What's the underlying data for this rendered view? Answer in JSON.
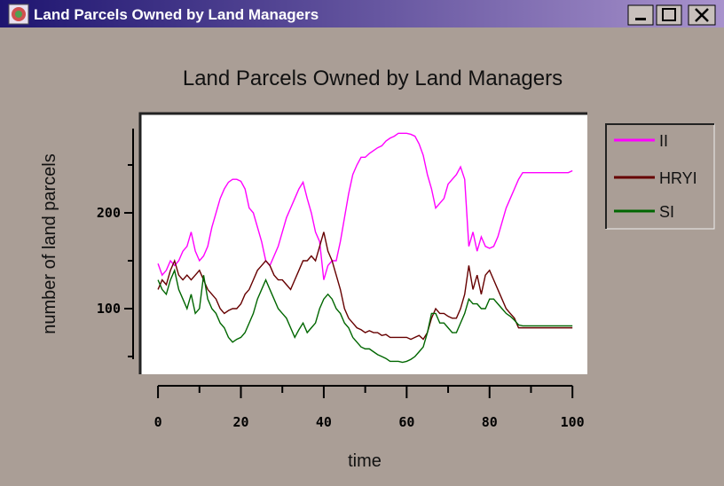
{
  "window": {
    "title": "Land Parcels Owned by Land Managers"
  },
  "chart_data": {
    "type": "line",
    "title": "Land Parcels Owned by Land Managers",
    "xlabel": "time",
    "ylabel": "number of land parcels",
    "x": [
      0,
      1,
      2,
      3,
      4,
      5,
      6,
      7,
      8,
      9,
      10,
      11,
      12,
      13,
      14,
      15,
      16,
      17,
      18,
      19,
      20,
      21,
      22,
      23,
      24,
      25,
      26,
      27,
      28,
      29,
      30,
      31,
      32,
      33,
      34,
      35,
      36,
      37,
      38,
      39,
      40,
      41,
      42,
      43,
      44,
      45,
      46,
      47,
      48,
      49,
      50,
      51,
      52,
      53,
      54,
      55,
      56,
      57,
      58,
      59,
      60,
      61,
      62,
      63,
      64,
      65,
      66,
      67,
      68,
      69,
      70,
      71,
      72,
      73,
      74,
      75,
      76,
      77,
      78,
      79,
      80,
      81,
      82,
      83,
      84,
      85,
      86,
      87,
      88,
      89,
      90,
      91,
      92,
      93,
      94,
      95,
      96,
      97,
      98,
      99,
      100
    ],
    "series": [
      {
        "name": "II",
        "color": "#ff00ff",
        "values": [
          147,
          135,
          140,
          150,
          145,
          150,
          160,
          165,
          180,
          160,
          150,
          155,
          165,
          185,
          200,
          215,
          225,
          232,
          235,
          235,
          233,
          225,
          205,
          200,
          185,
          170,
          150,
          145,
          155,
          165,
          180,
          195,
          205,
          215,
          225,
          232,
          215,
          200,
          180,
          170,
          130,
          145,
          150,
          150,
          170,
          195,
          220,
          240,
          250,
          258,
          258,
          262,
          265,
          268,
          270,
          275,
          278,
          280,
          283,
          283,
          283,
          282,
          280,
          272,
          260,
          240,
          225,
          205,
          210,
          215,
          230,
          235,
          240,
          248,
          235,
          165,
          180,
          160,
          175,
          165,
          163,
          165,
          175,
          190,
          205,
          215,
          225,
          235,
          242,
          242,
          242,
          242,
          242,
          242,
          242,
          242,
          242,
          242,
          242,
          242,
          244
        ]
      },
      {
        "name": "HRYI",
        "color": "#660000",
        "values": [
          120,
          130,
          125,
          140,
          150,
          135,
          130,
          135,
          130,
          135,
          140,
          130,
          120,
          115,
          110,
          100,
          95,
          98,
          100,
          100,
          105,
          115,
          120,
          130,
          140,
          145,
          150,
          145,
          135,
          130,
          130,
          125,
          120,
          130,
          140,
          150,
          150,
          155,
          150,
          165,
          180,
          160,
          150,
          135,
          120,
          100,
          90,
          85,
          80,
          78,
          75,
          77,
          75,
          75,
          72,
          73,
          70,
          70,
          70,
          70,
          70,
          68,
          70,
          72,
          68,
          75,
          90,
          100,
          95,
          95,
          92,
          90,
          90,
          100,
          115,
          145,
          120,
          135,
          115,
          135,
          140,
          130,
          120,
          110,
          100,
          95,
          90,
          80,
          80,
          80,
          80,
          80,
          80,
          80,
          80,
          80,
          80,
          80,
          80,
          80,
          80
        ]
      },
      {
        "name": "SI",
        "color": "#006600",
        "values": [
          130,
          120,
          115,
          130,
          140,
          120,
          110,
          100,
          115,
          95,
          100,
          135,
          110,
          100,
          95,
          85,
          80,
          70,
          65,
          68,
          70,
          75,
          85,
          95,
          110,
          120,
          130,
          120,
          110,
          100,
          95,
          90,
          80,
          70,
          78,
          85,
          75,
          80,
          85,
          100,
          110,
          115,
          110,
          100,
          95,
          85,
          80,
          70,
          65,
          60,
          58,
          58,
          55,
          52,
          50,
          48,
          45,
          45,
          45,
          44,
          45,
          47,
          50,
          55,
          60,
          75,
          95,
          95,
          85,
          85,
          80,
          75,
          75,
          85,
          95,
          110,
          105,
          105,
          100,
          100,
          110,
          110,
          105,
          100,
          95,
          92,
          88,
          83,
          82,
          82,
          82,
          82,
          82,
          82,
          82,
          82,
          82,
          82,
          82,
          82,
          82
        ]
      }
    ],
    "xlim": [
      -4.3,
      103.6
    ],
    "ylim": [
      31.5,
      303.7
    ],
    "xticks": [
      0,
      20,
      40,
      60,
      80,
      100
    ],
    "xminor": [
      10,
      30,
      50,
      70,
      90
    ],
    "yticks": [
      100,
      200
    ],
    "yminor": [
      50,
      150,
      250
    ],
    "grid": false,
    "legend": "right"
  }
}
